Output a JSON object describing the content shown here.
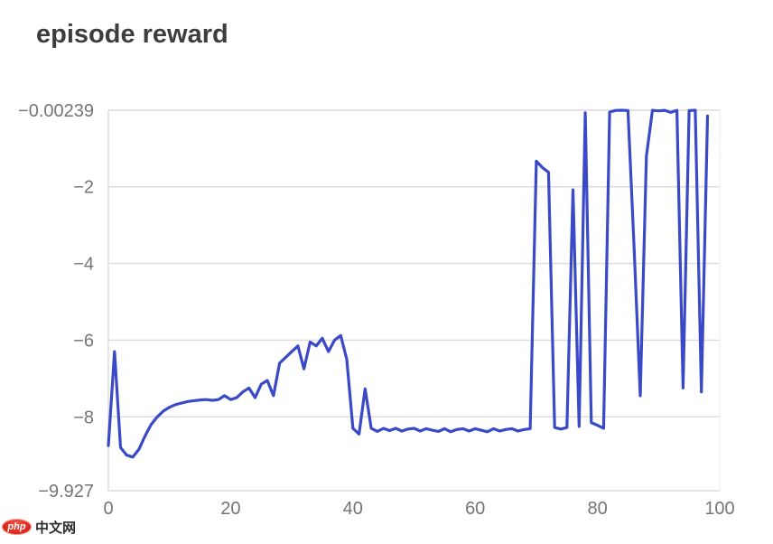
{
  "title": "episode reward",
  "watermark": {
    "badge": "php",
    "text": "中文网"
  },
  "colors": {
    "line": "#3a49c8",
    "grid": "#dcdcdc",
    "border": "#ececec",
    "tick_label": "#757575",
    "title": "#3d3d3d",
    "badge_red": "#e02b1d",
    "watermark_text": "#2b2b2b",
    "background": "#ffffff"
  },
  "chart_data": {
    "type": "line",
    "title": "episode reward",
    "xlabel": "",
    "ylabel": "",
    "xlim": [
      0,
      100
    ],
    "ylim": [
      -9.927,
      -0.00239
    ],
    "grid": "horizontal",
    "legend": "none",
    "x_ticks": [
      0,
      20,
      40,
      60,
      80,
      100
    ],
    "x_tick_labels": [
      "0",
      "20",
      "40",
      "60",
      "80",
      "100"
    ],
    "y_ticks": [
      -0.00239,
      -2,
      -4,
      -6,
      -8,
      -9.927
    ],
    "y_tick_labels": [
      "−0.00239",
      "−2",
      "−4",
      "−6",
      "−8",
      "−9.927"
    ],
    "x": [
      0,
      1,
      2,
      3,
      4,
      5,
      6,
      7,
      8,
      9,
      10,
      11,
      12,
      13,
      14,
      15,
      16,
      17,
      18,
      19,
      20,
      21,
      22,
      23,
      24,
      25,
      26,
      27,
      28,
      29,
      30,
      31,
      32,
      33,
      34,
      35,
      36,
      37,
      38,
      39,
      40,
      41,
      42,
      43,
      44,
      45,
      46,
      47,
      48,
      49,
      50,
      51,
      52,
      53,
      54,
      55,
      56,
      57,
      58,
      59,
      60,
      61,
      62,
      63,
      64,
      65,
      66,
      67,
      68,
      69,
      70,
      71,
      72,
      73,
      74,
      75,
      76,
      77,
      78,
      79,
      80,
      81,
      82,
      83,
      84,
      85,
      86,
      87,
      88,
      89,
      90,
      91,
      92,
      93,
      94,
      95,
      96,
      97,
      98
    ],
    "values": [
      -8.75,
      -6.3,
      -8.8,
      -9.0,
      -9.05,
      -8.85,
      -8.5,
      -8.2,
      -8.0,
      -7.85,
      -7.75,
      -7.68,
      -7.64,
      -7.6,
      -7.58,
      -7.56,
      -7.55,
      -7.57,
      -7.55,
      -7.45,
      -7.55,
      -7.5,
      -7.35,
      -7.25,
      -7.5,
      -7.15,
      -7.05,
      -7.45,
      -6.6,
      -6.45,
      -6.3,
      -6.15,
      -6.75,
      -6.05,
      -6.15,
      -5.95,
      -6.3,
      -6.0,
      -5.88,
      -6.5,
      -8.3,
      -8.45,
      -7.27,
      -8.3,
      -8.38,
      -8.3,
      -8.36,
      -8.3,
      -8.37,
      -8.32,
      -8.3,
      -8.37,
      -8.31,
      -8.35,
      -8.38,
      -8.31,
      -8.39,
      -8.33,
      -8.31,
      -8.37,
      -8.31,
      -8.35,
      -8.39,
      -8.31,
      -8.37,
      -8.33,
      -8.31,
      -8.37,
      -8.33,
      -8.31,
      -1.33,
      -1.5,
      -1.62,
      -8.28,
      -8.32,
      -8.28,
      -2.08,
      -8.25,
      -0.07,
      -8.15,
      -8.22,
      -8.3,
      -0.05,
      -0.008,
      -0.003,
      -0.01,
      -3.6,
      -7.45,
      -1.2,
      -0.005,
      -0.02,
      -0.005,
      -0.06,
      -0.005,
      -7.25,
      -0.01,
      -0.003,
      -7.35,
      -0.15
    ]
  }
}
